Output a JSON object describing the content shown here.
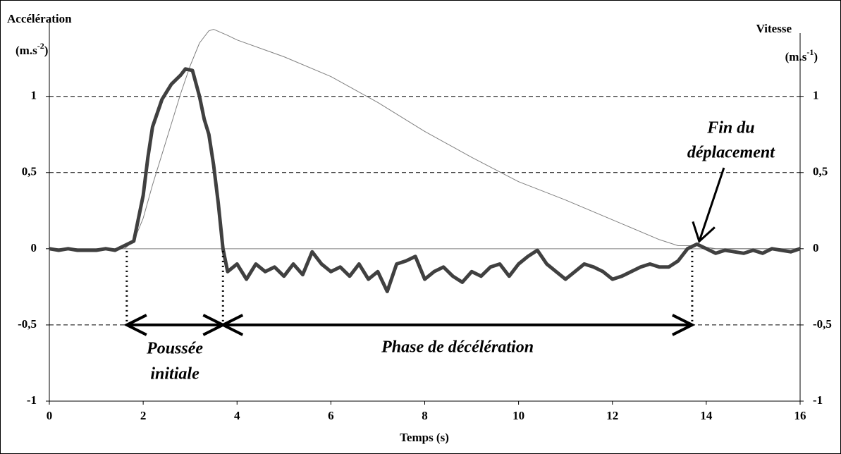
{
  "chart_data": {
    "type": "line",
    "x_label": "Temps (s)",
    "y_label": "Accélération",
    "y_unit": {
      "base": "(m.s",
      "exponent": "-2",
      "close": ")"
    },
    "y2_label": "Vitesse",
    "y2_unit": {
      "base": "(m.s",
      "exponent": "-1",
      "close": ")"
    },
    "xlim": [
      0,
      16
    ],
    "xticks": [
      0,
      2,
      4,
      6,
      8,
      10,
      12,
      14,
      16
    ],
    "ylim": [
      -1,
      1.6
    ],
    "yticks": [
      -1,
      {
        "value": -0.5,
        "label": "-0,5"
      },
      0,
      {
        "value": 0.5,
        "label": "0,5"
      },
      1
    ],
    "y2lim": [
      -1,
      1.6
    ],
    "y2ticks": [
      -1,
      {
        "value": -0.5,
        "label": "-0,5"
      },
      0,
      {
        "value": 0.5,
        "label": "0,5"
      },
      1
    ],
    "grid": true,
    "series": [
      {
        "name": "Accélération",
        "color": "#404040",
        "x": [
          0,
          0.2,
          0.4,
          0.6,
          0.8,
          1.0,
          1.2,
          1.4,
          1.6,
          1.8,
          2.0,
          2.1,
          2.2,
          2.4,
          2.6,
          2.8,
          2.9,
          3.05,
          3.2,
          3.3,
          3.4,
          3.5,
          3.6,
          3.7,
          3.8,
          4.0,
          4.2,
          4.4,
          4.6,
          4.8,
          5.0,
          5.2,
          5.4,
          5.6,
          5.8,
          6.0,
          6.2,
          6.4,
          6.6,
          6.8,
          7.0,
          7.2,
          7.4,
          7.6,
          7.8,
          8.0,
          8.2,
          8.4,
          8.6,
          8.8,
          9.0,
          9.2,
          9.4,
          9.6,
          9.8,
          10.0,
          10.2,
          10.4,
          10.6,
          10.8,
          11.0,
          11.2,
          11.4,
          11.6,
          11.8,
          12.0,
          12.2,
          12.4,
          12.6,
          12.8,
          13.0,
          13.2,
          13.4,
          13.6,
          13.8,
          14.0,
          14.2,
          14.4,
          14.6,
          14.8,
          15.0,
          15.2,
          15.4,
          15.6,
          15.8,
          16.0
        ],
        "values": [
          0,
          -0.01,
          0,
          -0.01,
          -0.01,
          -0.01,
          0,
          -0.01,
          0.02,
          0.05,
          0.35,
          0.6,
          0.8,
          0.98,
          1.08,
          1.14,
          1.18,
          1.17,
          1.0,
          0.85,
          0.75,
          0.55,
          0.3,
          0.0,
          -0.15,
          -0.1,
          -0.2,
          -0.1,
          -0.15,
          -0.12,
          -0.18,
          -0.1,
          -0.17,
          -0.02,
          -0.1,
          -0.15,
          -0.12,
          -0.18,
          -0.1,
          -0.2,
          -0.15,
          -0.28,
          -0.1,
          -0.08,
          -0.05,
          -0.2,
          -0.15,
          -0.12,
          -0.18,
          -0.22,
          -0.15,
          -0.18,
          -0.12,
          -0.1,
          -0.18,
          -0.1,
          -0.05,
          -0.01,
          -0.1,
          -0.15,
          -0.2,
          -0.15,
          -0.1,
          -0.12,
          -0.15,
          -0.2,
          -0.18,
          -0.15,
          -0.12,
          -0.1,
          -0.12,
          -0.12,
          -0.08,
          0.0,
          0.03,
          0.0,
          -0.03,
          -0.01,
          -0.02,
          -0.03,
          -0.01,
          -0.03,
          0.0,
          -0.01,
          -0.02,
          0.0
        ]
      },
      {
        "name": "Vitesse",
        "color": "#808080",
        "axis": "y2",
        "x": [
          0,
          1.6,
          1.8,
          2.0,
          2.2,
          2.4,
          2.6,
          2.8,
          3.0,
          3.2,
          3.4,
          3.5,
          3.8,
          4.0,
          5.0,
          6.0,
          7.0,
          8.0,
          9.0,
          10.0,
          11.0,
          12.0,
          13.0,
          13.4,
          13.8,
          14.2,
          16.0
        ],
        "values": [
          0,
          0,
          0.05,
          0.2,
          0.42,
          0.62,
          0.82,
          1.02,
          1.2,
          1.35,
          1.43,
          1.44,
          1.4,
          1.37,
          1.26,
          1.13,
          0.96,
          0.77,
          0.6,
          0.44,
          0.32,
          0.19,
          0.06,
          0.02,
          0.02,
          0.0,
          0.0
        ]
      }
    ],
    "phase_level": -0.5,
    "phases": [
      {
        "name": [
          "Poussée",
          "initiale"
        ],
        "start": 1.65,
        "end": 3.7
      },
      {
        "name": [
          "Phase de décélération"
        ],
        "start": 3.7,
        "end": 13.7
      }
    ],
    "annotation": {
      "text": [
        "Fin du",
        "déplacement"
      ],
      "x": 13.85,
      "y": 0.03
    }
  }
}
